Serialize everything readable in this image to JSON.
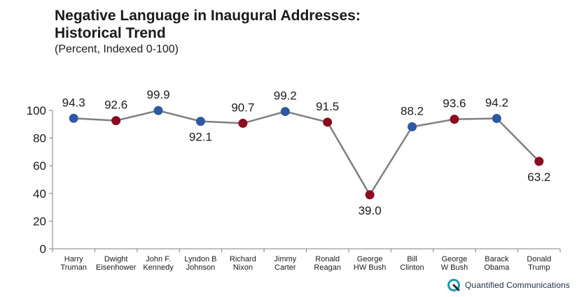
{
  "chart_data": {
    "type": "line",
    "title_lines": [
      "Negative Language in Inaugural Addresses:",
      "Historical Trend"
    ],
    "subtitle": "(Percent, Indexed 0-100)",
    "xlabel": "",
    "ylabel": "",
    "ylim": [
      0,
      100
    ],
    "yticks": [
      0,
      20,
      40,
      60,
      80,
      100
    ],
    "grid": false,
    "categories": [
      [
        "Harry",
        "Truman"
      ],
      [
        "Dwight",
        "Eisenhower"
      ],
      [
        "John F.",
        "Kennedy"
      ],
      [
        "Lyndon B",
        "Johnson"
      ],
      [
        "Richard",
        "Nixon"
      ],
      [
        "Jimmy",
        "Carter"
      ],
      [
        "Ronald",
        "Reagan"
      ],
      [
        "George",
        "HW Bush"
      ],
      [
        "Bill",
        "Clinton"
      ],
      [
        "George",
        "W Bush"
      ],
      [
        "Barack",
        "Obama"
      ],
      [
        "Donald",
        "Trump"
      ]
    ],
    "values": [
      94.3,
      92.6,
      99.9,
      92.1,
      90.7,
      99.2,
      91.5,
      39.0,
      88.2,
      93.6,
      94.2,
      63.2
    ],
    "value_labels": [
      "94.3",
      "92.6",
      "99.9",
      "92.1",
      "90.7",
      "99.2",
      "91.5",
      "39.0",
      "88.2",
      "93.6",
      "94.2",
      "63.2"
    ],
    "label_positions": [
      "above",
      "above",
      "above",
      "below",
      "above",
      "above",
      "above",
      "below",
      "above",
      "above",
      "above",
      "below"
    ],
    "point_party": [
      "dem",
      "rep",
      "dem",
      "dem",
      "rep",
      "dem",
      "rep",
      "rep",
      "dem",
      "rep",
      "dem",
      "rep"
    ],
    "colors": {
      "dem": "#2e58a2",
      "rep": "#8c0b1f",
      "line": "#7f7f7f",
      "axis": "#7f7f7f"
    }
  },
  "logo": {
    "text": "Quantified Communications",
    "icon": "quantified-communications-logo-icon",
    "colors": {
      "teal": "#1a9bb8",
      "navy": "#1f2d44"
    }
  }
}
